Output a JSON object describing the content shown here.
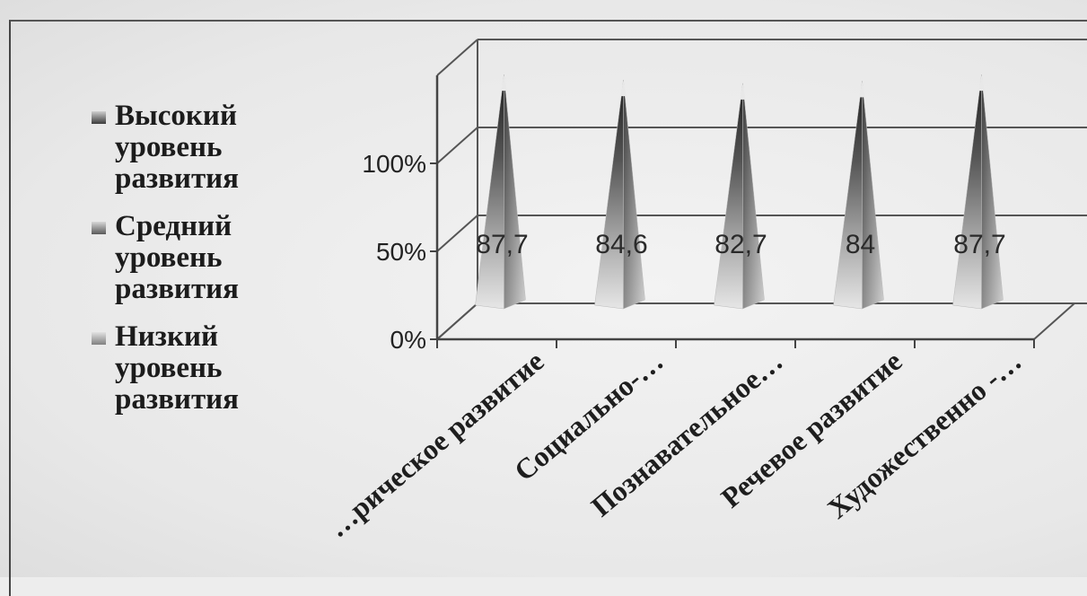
{
  "chart_data": {
    "type": "bar",
    "shape": "pyramid-3d",
    "categories": [
      "…рическое развитие",
      "Социально-…",
      "Познавательное…",
      "Речевое развитие",
      "Художественно -…"
    ],
    "series": [
      {
        "name": "Высокий уровень развития",
        "values": [
          87.7,
          84.6,
          82.7,
          84,
          87.7
        ]
      },
      {
        "name": "Средний уровень развития",
        "values": [
          null,
          null,
          null,
          null,
          null
        ]
      },
      {
        "name": "Низкий уровень развития",
        "values": [
          null,
          null,
          null,
          null,
          null
        ]
      }
    ],
    "data_labels": [
      "87,7",
      "84,6",
      "82,7",
      "84",
      "87,7"
    ],
    "yticks": [
      "0%",
      "50%",
      "100%"
    ],
    "ylim": [
      0,
      100
    ],
    "legend_position": "left",
    "grid": true
  },
  "legend": [
    {
      "lines": [
        "Высокий",
        "уровень",
        "развития"
      ],
      "color": "#555555"
    },
    {
      "lines": [
        "Средний",
        "уровень",
        "развития"
      ],
      "color": "#7a7a7a"
    },
    {
      "lines": [
        "Низкий",
        "уровень",
        "развития"
      ],
      "color": "#9a9a9a"
    }
  ]
}
